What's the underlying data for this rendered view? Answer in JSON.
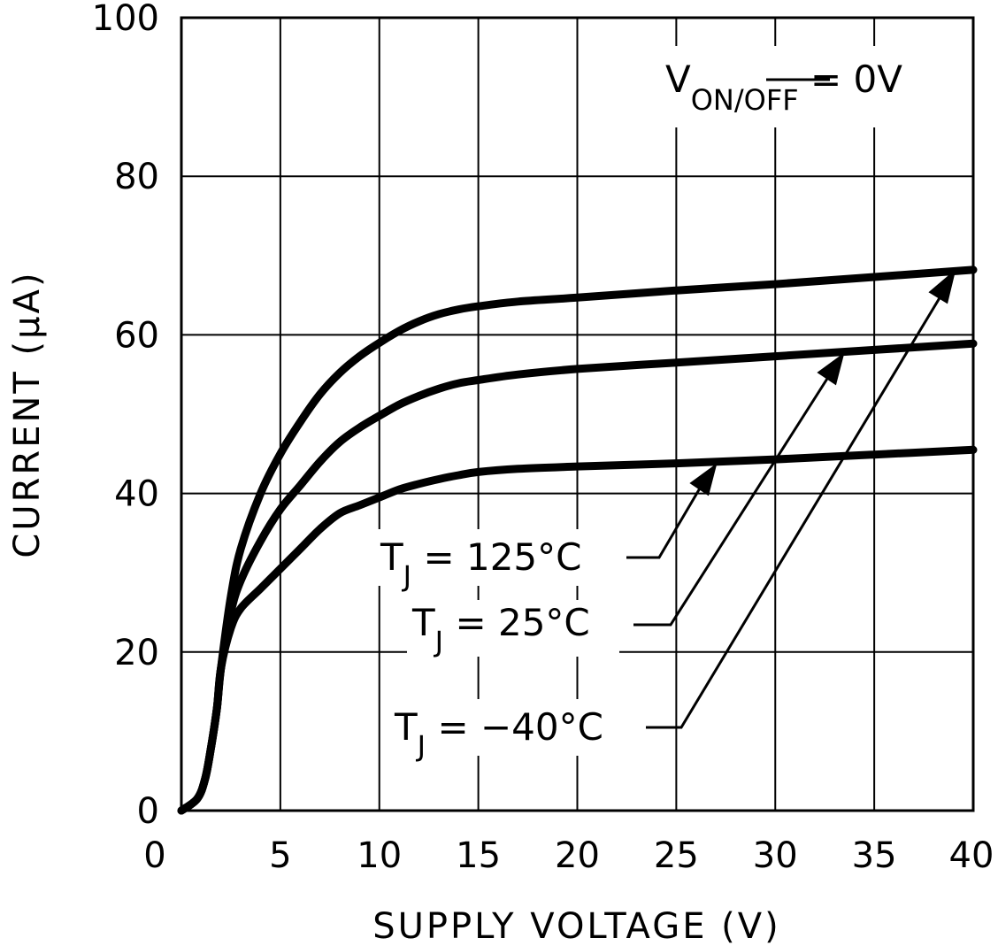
{
  "chart_data": {
    "type": "line",
    "title": "",
    "xlabel": "SUPPLY VOLTAGE (V)",
    "ylabel": "CURRENT (μA)",
    "xlim": [
      0,
      40
    ],
    "ylim": [
      0,
      100
    ],
    "x_ticks": [
      0,
      5,
      10,
      15,
      20,
      25,
      30,
      35,
      40
    ],
    "y_ticks": [
      0,
      20,
      40,
      60,
      80,
      100
    ],
    "grid": true,
    "legend": "none",
    "annotation": {
      "main": "V",
      "sub": "ON/",
      "sub_overline": "OFF",
      "rest": " = 0V"
    },
    "series": [
      {
        "name": "TJ = 125°C",
        "label_main": "T",
        "label_sub": "J",
        "label_rest": " = 125°C",
        "x": [
          0,
          0.8,
          1.2,
          1.5,
          1.8,
          2.0,
          2.5,
          3.0,
          4.0,
          5.0,
          6.0,
          7.0,
          8.0,
          9.0,
          10.0,
          11.0,
          12.0,
          13.0,
          14.0,
          15.0,
          17.0,
          20.0,
          25.0,
          30.0,
          35.0,
          40.0
        ],
        "values": [
          0,
          1.5,
          4,
          8,
          13,
          18,
          23,
          25.5,
          28,
          30.5,
          33,
          35.5,
          37.5,
          38.5,
          39.5,
          40.5,
          41.2,
          41.8,
          42.3,
          42.7,
          43.1,
          43.4,
          43.8,
          44.3,
          44.9,
          45.5
        ]
      },
      {
        "name": "TJ = 25°C",
        "label_main": "T",
        "label_sub": "J",
        "label_rest": " = 25°C",
        "x": [
          0,
          0.8,
          1.2,
          1.5,
          1.8,
          2.0,
          2.5,
          3.0,
          4.0,
          5.0,
          6.0,
          7.0,
          8.0,
          9.0,
          10.0,
          11.0,
          12.0,
          13.0,
          14.0,
          15.0,
          17.0,
          20.0,
          25.0,
          30.0,
          35.0,
          40.0
        ],
        "values": [
          0,
          1.5,
          4,
          8,
          13,
          18,
          25,
          29,
          34,
          38,
          41,
          44,
          46.5,
          48.3,
          49.8,
          51.2,
          52.3,
          53.2,
          53.9,
          54.3,
          55,
          55.7,
          56.5,
          57.3,
          58.1,
          58.9
        ]
      },
      {
        "name": "TJ = -40°C",
        "label_main": "T",
        "label_sub": "J",
        "label_rest": " = −40°C",
        "x": [
          0,
          0.8,
          1.2,
          1.5,
          1.8,
          2.0,
          2.5,
          3.0,
          4.0,
          5.0,
          6.0,
          7.0,
          8.0,
          9.0,
          10.0,
          11.0,
          12.0,
          13.0,
          14.0,
          15.0,
          17.0,
          20.0,
          25.0,
          30.0,
          35.0,
          40.0
        ],
        "values": [
          0,
          1.5,
          4,
          8,
          13,
          18,
          27,
          33,
          40,
          45,
          49,
          52.5,
          55.2,
          57.3,
          59,
          60.5,
          61.7,
          62.6,
          63.2,
          63.6,
          64.2,
          64.7,
          65.6,
          66.4,
          67.3,
          68.2
        ]
      }
    ]
  }
}
